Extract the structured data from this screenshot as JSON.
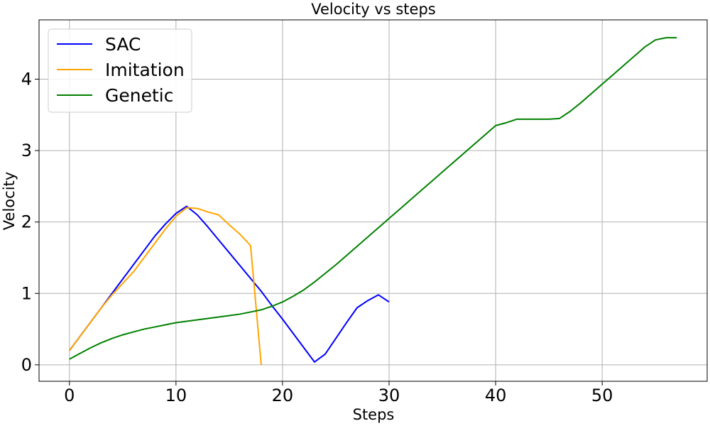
{
  "chart_data": {
    "type": "line",
    "title": "Velocity vs steps",
    "xlabel": "Steps",
    "ylabel": "Velocity",
    "xlim": [
      -2.85,
      59.85
    ],
    "ylim": [
      -0.23,
      4.83
    ],
    "xticks": [
      0,
      10,
      20,
      30,
      40,
      50
    ],
    "yticks": [
      0,
      1,
      2,
      3,
      4
    ],
    "grid": true,
    "legend_position": "top-left",
    "series": [
      {
        "name": "SAC",
        "color": "#0000ff",
        "x": [
          0,
          1,
          2,
          3,
          4,
          5,
          6,
          7,
          8,
          9,
          10,
          11,
          12,
          13,
          14,
          15,
          16,
          17,
          18,
          19,
          20,
          21,
          22,
          23,
          24,
          25,
          26,
          27,
          28,
          29,
          30
        ],
        "y": [
          0.2,
          0.4,
          0.6,
          0.8,
          1.0,
          1.2,
          1.4,
          1.6,
          1.8,
          1.97,
          2.12,
          2.22,
          2.1,
          1.93,
          1.75,
          1.57,
          1.39,
          1.21,
          1.03,
          0.83,
          0.64,
          0.44,
          0.24,
          0.04,
          0.15,
          0.37,
          0.59,
          0.8,
          0.9,
          0.98,
          0.88
        ]
      },
      {
        "name": "Imitation",
        "color": "#ffa500",
        "x": [
          0,
          1,
          2,
          3,
          4,
          5,
          6,
          7,
          8,
          9,
          10,
          11,
          12,
          13,
          14,
          15,
          16,
          17,
          18
        ],
        "y": [
          0.2,
          0.4,
          0.6,
          0.8,
          0.98,
          1.14,
          1.3,
          1.5,
          1.7,
          1.9,
          2.08,
          2.2,
          2.19,
          2.14,
          2.1,
          1.96,
          1.83,
          1.67,
          0.0
        ]
      },
      {
        "name": "Genetic",
        "color": "#008000",
        "x": [
          0,
          1,
          2,
          3,
          4,
          5,
          6,
          7,
          8,
          9,
          10,
          11,
          12,
          13,
          14,
          15,
          16,
          17,
          18,
          19,
          20,
          21,
          22,
          23,
          24,
          25,
          26,
          27,
          28,
          29,
          30,
          31,
          32,
          33,
          34,
          35,
          36,
          37,
          38,
          39,
          40,
          41,
          42,
          43,
          44,
          45,
          46,
          47,
          48,
          49,
          50,
          51,
          52,
          53,
          54,
          55,
          56,
          57
        ],
        "y": [
          0.08,
          0.16,
          0.24,
          0.31,
          0.37,
          0.42,
          0.46,
          0.5,
          0.53,
          0.56,
          0.59,
          0.61,
          0.63,
          0.65,
          0.67,
          0.69,
          0.71,
          0.74,
          0.77,
          0.82,
          0.88,
          0.96,
          1.05,
          1.16,
          1.28,
          1.4,
          1.53,
          1.66,
          1.79,
          1.92,
          2.05,
          2.18,
          2.31,
          2.44,
          2.57,
          2.7,
          2.83,
          2.96,
          3.09,
          3.22,
          3.35,
          3.39,
          3.44,
          3.44,
          3.44,
          3.44,
          3.45,
          3.55,
          3.67,
          3.8,
          3.93,
          4.06,
          4.19,
          4.32,
          4.45,
          4.55,
          4.58,
          4.58
        ]
      }
    ]
  }
}
